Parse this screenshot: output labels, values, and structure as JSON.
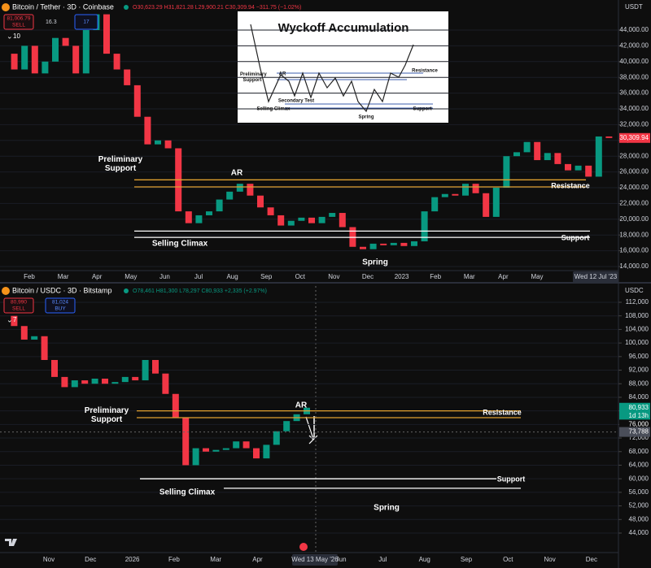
{
  "panels": [
    {
      "symbol": "Bitcoin / Tether · 3D · Coinbase",
      "ohlc": "O30,623.29 H31,821.28 L29,900.21 C30,309.94 −311.75 (−1.02%)",
      "sell": "81,006.79",
      "sell_label": "SELL",
      "spread": "16.3",
      "buy": "17",
      "indicator_count": "10",
      "currency": "USDT",
      "chart_data": {
        "type": "candlestick",
        "up_color": "#089981",
        "down_color": "#f23645",
        "grid": true,
        "closes": [
          41000,
          39000,
          42000,
          38500,
          40000,
          43000,
          42000,
          38500,
          44000,
          46000,
          41000,
          39000,
          37000,
          33000,
          29500,
          30000,
          29000,
          21000,
          19500,
          20500,
          21000,
          22500,
          23500,
          24500,
          23000,
          21500,
          20500,
          19200,
          19800,
          20200,
          19500,
          20300,
          20800,
          19000,
          16500,
          16200,
          16900,
          16700,
          17000,
          16600,
          17200,
          21000,
          22800,
          23200,
          23000,
          24500,
          23300,
          20300,
          24000,
          28000,
          28500,
          29800,
          27500,
          28400,
          27000,
          26200,
          26800,
          25400,
          30500,
          30309.94
        ],
        "ylim": [
          14000,
          44000
        ],
        "yticks": [
          {
            "value": 14000,
            "label": "14,000.00"
          },
          {
            "value": 16000,
            "label": "16,000.00"
          },
          {
            "value": 18000,
            "label": "18,000.00"
          },
          {
            "value": 20000,
            "label": "20,000.00"
          },
          {
            "value": 22000,
            "label": "22,000.00"
          },
          {
            "value": 24000,
            "label": "24,000.00"
          },
          {
            "value": 26000,
            "label": "26,000.00"
          },
          {
            "value": 28000,
            "label": "28,000.00"
          },
          {
            "value": 30000,
            "label": "30,000.00"
          },
          {
            "value": 32000,
            "label": "32,000.00"
          },
          {
            "value": 34000,
            "label": "34,000.00"
          },
          {
            "value": 36000,
            "label": "36,000.00"
          },
          {
            "value": 38000,
            "label": "38,000.00"
          },
          {
            "value": 40000,
            "label": "40,000.00"
          },
          {
            "value": 42000,
            "label": "42,000.00"
          },
          {
            "value": 44000,
            "label": "44,000.00"
          }
        ],
        "x_labels": [
          "Feb",
          "Mar",
          "Apr",
          "May",
          "Jun",
          "Jul",
          "Aug",
          "Sep",
          "Oct",
          "Nov",
          "Dec",
          "2023",
          "Feb",
          "Mar",
          "Apr",
          "May"
        ],
        "cursor_date": "Wed 12 Jul '23",
        "price_tags": [
          {
            "value": 30309.94,
            "label": "30,309.94",
            "color": "#f23645"
          }
        ],
        "levels": [
          {
            "name": "Resistance",
            "values": [
              25000,
              24100
            ],
            "color": "#e0a030"
          },
          {
            "name": "Support",
            "values": [
              18500,
              17700
            ],
            "color": "#ffffff"
          }
        ],
        "annotations": [
          "Preliminary Support",
          "AR",
          "Selling Climax",
          "Spring"
        ]
      }
    },
    {
      "symbol": "Bitcoin / USDC · 3D · Bitstamp",
      "ohlc": "O78,461 H81,300 L78,297 C80,933 +2,335 (+2.97%)",
      "sell": "80,990",
      "sell_label": "SELL",
      "buy": "81,024",
      "buy_label": "BUY",
      "indicator_count": "7",
      "currency": "USDC",
      "chart_data": {
        "type": "candlestick",
        "up_color": "#089981",
        "down_color": "#f23645",
        "grid": true,
        "closes": [
          108000,
          105000,
          101000,
          102000,
          95000,
          90000,
          87000,
          89000,
          88000,
          89500,
          88000,
          88500,
          90000,
          89000,
          95000,
          91000,
          85000,
          78000,
          64000,
          69000,
          68000,
          68500,
          69000,
          71000,
          69000,
          66000,
          70000,
          74000,
          77000,
          79000,
          80933
        ],
        "ylim": [
          44000,
          112000
        ],
        "yticks": [
          {
            "value": 44000,
            "label": "44,000"
          },
          {
            "value": 48000,
            "label": "48,000"
          },
          {
            "value": 52000,
            "label": "52,000"
          },
          {
            "value": 56000,
            "label": "56,000"
          },
          {
            "value": 60000,
            "label": "60,000"
          },
          {
            "value": 64000,
            "label": "64,000"
          },
          {
            "value": 68000,
            "label": "68,000"
          },
          {
            "value": 72000,
            "label": "72,000"
          },
          {
            "value": 76000,
            "label": "76,000"
          },
          {
            "value": 80000,
            "label": "80,000"
          },
          {
            "value": 84000,
            "label": "84,000"
          },
          {
            "value": 88000,
            "label": "88,000"
          },
          {
            "value": 92000,
            "label": "92,000"
          },
          {
            "value": 96000,
            "label": "96,000"
          },
          {
            "value": 100000,
            "label": "100,000"
          },
          {
            "value": 104000,
            "label": "104,000"
          },
          {
            "value": 108000,
            "label": "108,000"
          },
          {
            "value": 112000,
            "label": "112,000"
          }
        ],
        "x_labels": [
          "Nov",
          "Dec",
          "2026",
          "Feb",
          "Mar",
          "Apr",
          "Jun",
          "Jul",
          "Aug",
          "Sep",
          "Oct",
          "Nov",
          "Dec"
        ],
        "cursor_date": "Wed 13 May '26",
        "price_tags": [
          {
            "value": 80933,
            "label": "80,933",
            "color": "#089981"
          },
          {
            "value": 76000,
            "label": "76,000"
          },
          {
            "value": 73788,
            "label": "73,788",
            "color": "#4a4e59"
          }
        ],
        "countdown": "1d 13h",
        "levels": [
          {
            "name": "Resistance",
            "values": [
              80000,
              78000
            ],
            "color": "#e0a030"
          },
          {
            "name": "Support",
            "values": [
              60000,
              57200
            ],
            "color": "#ffffff"
          }
        ],
        "annotations": [
          "Preliminary Support",
          "AR",
          "Selling Climax",
          "Spring"
        ]
      }
    }
  ],
  "inset": {
    "title": "Wyckoff Accumulation",
    "labels": [
      "Preliminary Support",
      "AR",
      "Secondary Test",
      "Selling Climax",
      "Spring",
      "Resistance",
      "Support"
    ]
  }
}
